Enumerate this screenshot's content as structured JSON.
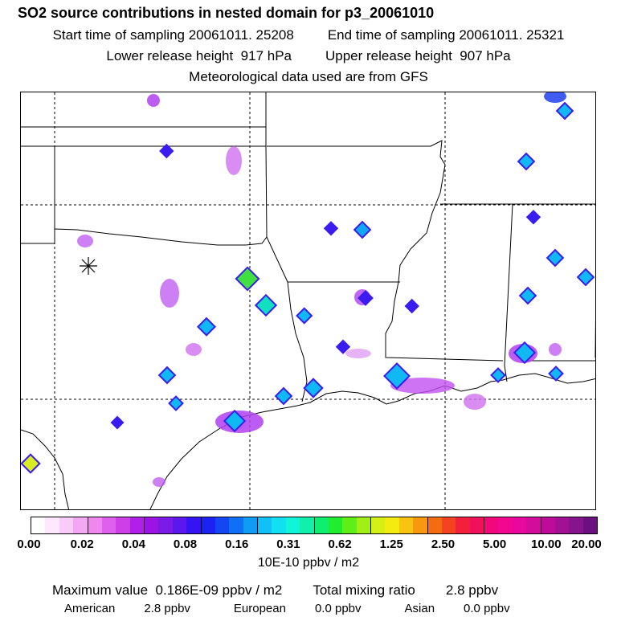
{
  "header": {
    "title": "SO2 source contributions in nested domain for p3_20061010",
    "start_label": "Start time of sampling",
    "start_value": "20061011. 25208",
    "end_label": "End time of sampling",
    "end_value": "20061011. 25321",
    "lower_label": "Lower release height",
    "lower_value": "917 hPa",
    "upper_label": "Upper release height",
    "upper_value": "907 hPa",
    "met_note": "Meteorological data used are from GFS"
  },
  "legend": {
    "tick_labels": [
      "0.00",
      "0.02",
      "0.04",
      "0.08",
      "0.16",
      "0.31",
      "0.62",
      "1.25",
      "2.50",
      "5.00",
      "10.00",
      "20.00"
    ],
    "units": "10E-10 ppbv / m2",
    "colors": [
      "#ffffff",
      "#fde8fd",
      "#f9cbf9",
      "#f4a8f4",
      "#ee88ee",
      "#e060ee",
      "#cf3fe8",
      "#b020e8",
      "#9a14e4",
      "#7c1ae8",
      "#5a18ee",
      "#3414f2",
      "#1c22f2",
      "#1446f4",
      "#1070f4",
      "#109cf4",
      "#10c0f6",
      "#10e0f0",
      "#10f4d8",
      "#10f0a8",
      "#10ee70",
      "#20ec30",
      "#60ee18",
      "#a0f018",
      "#d4f018",
      "#f4ec10",
      "#f8c410",
      "#f89810",
      "#f46c10",
      "#f24420",
      "#f2203c",
      "#f0105c",
      "#f2087a",
      "#f20890",
      "#e8089e",
      "#d40c9c",
      "#bc0c98",
      "#a21094",
      "#86148c",
      "#6a1080"
    ]
  },
  "stats": {
    "max_label": "Maximum value",
    "max_value": "0.186E-09 ppbv / m2",
    "total_label": "Total mixing ratio",
    "total_value": "2.8 ppbv",
    "american_label": "American",
    "american_value": "2.8 ppbv",
    "european_label": "European",
    "european_value": "0.0 ppbv",
    "asian_label": "Asian",
    "asian_value": "0.0 ppbv"
  }
}
